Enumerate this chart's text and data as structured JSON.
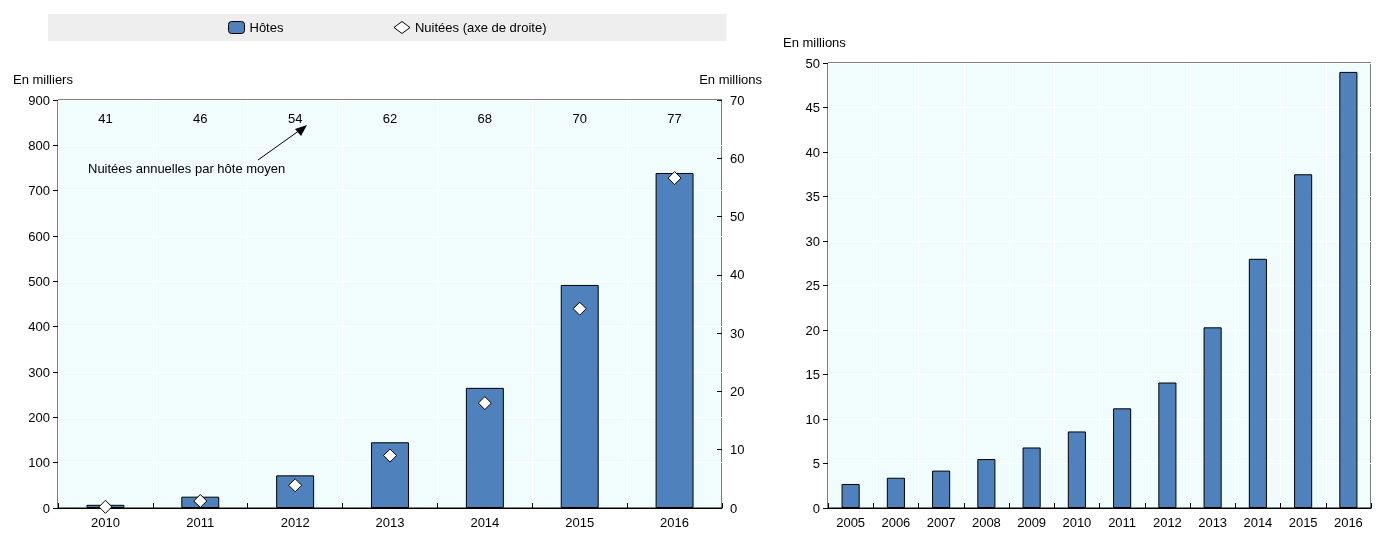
{
  "chart_data": [
    {
      "type": "bar",
      "categories": [
        "2010",
        "2011",
        "2012",
        "2013",
        "2014",
        "2015",
        "2016"
      ],
      "series": [
        {
          "name": "Hôtes",
          "color": "#4f81bd",
          "values": [
            7,
            25,
            72,
            145,
            265,
            492,
            739
          ]
        },
        {
          "name": "Nuitées (axe de droite)",
          "type": "scatter",
          "axis": "y2",
          "color": "#ffffff",
          "values": [
            0.2,
            1.2,
            3.9,
            9,
            18,
            34.2,
            56.6
          ]
        }
      ],
      "ylabel": "En milliers",
      "y2label": "En millions",
      "ylim": [
        0,
        900
      ],
      "yticks": [
        0,
        100,
        200,
        300,
        400,
        500,
        600,
        700,
        800,
        900
      ],
      "y2lim": [
        0,
        70
      ],
      "y2ticks": [
        0,
        10,
        20,
        30,
        40,
        50,
        60,
        70
      ],
      "grid": true,
      "legend": "top",
      "marker": "diamond",
      "annotations": [
        "41",
        "46",
        "54",
        "62",
        "68",
        "70",
        "77",
        "Nuitées annuelles par hôte moyen"
      ]
    },
    {
      "type": "bar",
      "categories": [
        "2005",
        "2006",
        "2007",
        "2008",
        "2009",
        "2010",
        "2011",
        "2012",
        "2013",
        "2014",
        "2015",
        "2016"
      ],
      "color": "#4f81bd",
      "values": [
        2.7,
        3.4,
        4.2,
        5.5,
        6.8,
        8.6,
        11.2,
        14.1,
        20.3,
        28,
        37.5,
        49
      ],
      "ylabel": "En millions",
      "ylim": [
        0,
        50
      ],
      "yticks": [
        0,
        5,
        10,
        15,
        20,
        25,
        30,
        35,
        40,
        45,
        50
      ],
      "grid": true
    }
  ]
}
